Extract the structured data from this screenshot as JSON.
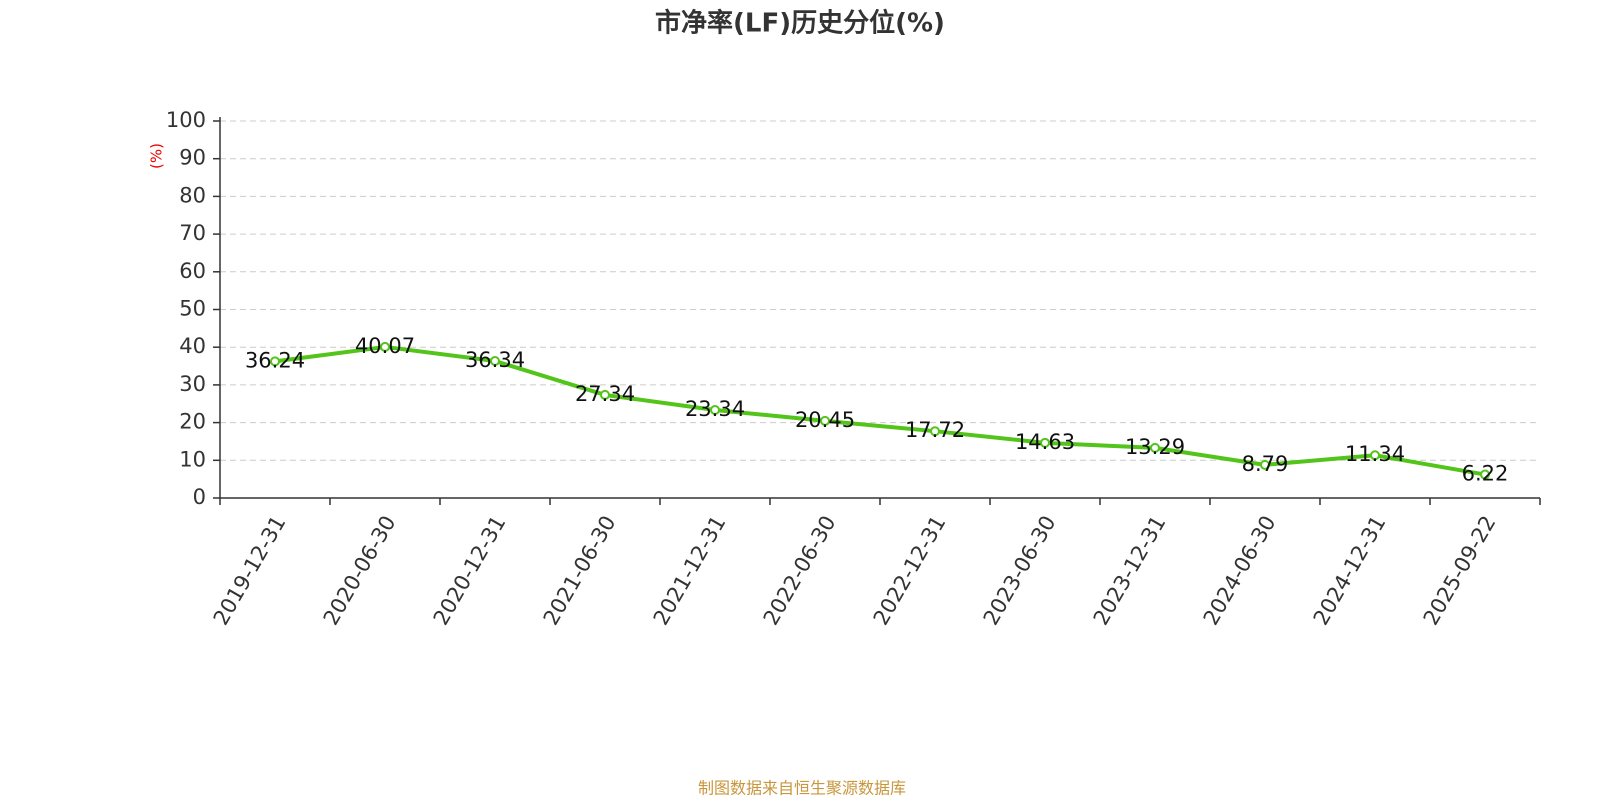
{
  "chart_data": {
    "type": "line",
    "title": "市净率(LF)历史分位(%)",
    "y_label": "(%)",
    "source": "制图数据来自恒生聚源数据库",
    "categories": [
      "2019-12-31",
      "2020-06-30",
      "2020-12-31",
      "2021-06-30",
      "2021-12-31",
      "2022-06-30",
      "2022-12-31",
      "2023-06-30",
      "2023-12-31",
      "2024-06-30",
      "2024-12-31",
      "2025-09-22"
    ],
    "values": [
      36.24,
      40.07,
      36.34,
      27.34,
      23.34,
      20.45,
      17.72,
      14.63,
      13.29,
      8.79,
      11.34,
      6.22
    ],
    "color": "#52c41a",
    "ylim": [
      0,
      100
    ],
    "yticks": [
      0,
      10,
      20,
      30,
      40,
      50,
      60,
      70,
      80,
      90,
      100
    ],
    "grid": true
  }
}
